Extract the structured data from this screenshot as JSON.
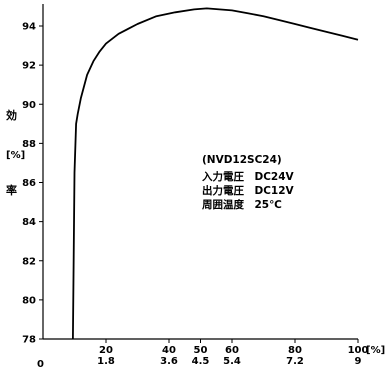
{
  "chart_data": {
    "type": "line",
    "title": "",
    "xlabel": "",
    "ylabel_chars": [
      "効",
      "率"
    ],
    "yunit": "[%]",
    "xunit": "[%]",
    "x_origin_label": "0",
    "xlim": [
      0,
      100
    ],
    "ylim": [
      78,
      95
    ],
    "grid": false,
    "x_ticks": [
      {
        "x": 20,
        "percent_label": "20",
        "amp_label": "1.8"
      },
      {
        "x": 40,
        "percent_label": "40",
        "amp_label": "3.6"
      },
      {
        "x": 50,
        "percent_label": "50",
        "amp_label": "4.5"
      },
      {
        "x": 60,
        "percent_label": "60",
        "amp_label": "5.4"
      },
      {
        "x": 80,
        "percent_label": "80",
        "amp_label": "7.2"
      },
      {
        "x": 100,
        "percent_label": "100",
        "amp_label": "9"
      }
    ],
    "y_ticks": [
      {
        "y": 78,
        "label": "78"
      },
      {
        "y": 80,
        "label": "80"
      },
      {
        "y": 82,
        "label": "82"
      },
      {
        "y": 84,
        "label": "84"
      },
      {
        "y": 86,
        "label": "86"
      },
      {
        "y": 88,
        "label": "88"
      },
      {
        "y": 90,
        "label": "90"
      },
      {
        "y": 92,
        "label": "92"
      },
      {
        "y": 94,
        "label": "94"
      }
    ],
    "series": [
      {
        "color": "#000000",
        "x": [
          9.5,
          10,
          10.5,
          11,
          12,
          14,
          16,
          18,
          20,
          24,
          30,
          36,
          42,
          48,
          52,
          56,
          60,
          65,
          70,
          75,
          80,
          85,
          90,
          95,
          100
        ],
        "y": [
          78.0,
          86.5,
          89.0,
          89.5,
          90.3,
          91.5,
          92.2,
          92.7,
          93.1,
          93.6,
          94.1,
          94.5,
          94.7,
          94.85,
          94.9,
          94.85,
          94.8,
          94.65,
          94.5,
          94.3,
          94.1,
          93.9,
          93.7,
          93.5,
          93.3
        ]
      }
    ],
    "annotations": [
      "(NVD12SC24)",
      "入力電圧　DC24V",
      "出力電圧　DC12V",
      "周囲温度　25℃"
    ]
  }
}
